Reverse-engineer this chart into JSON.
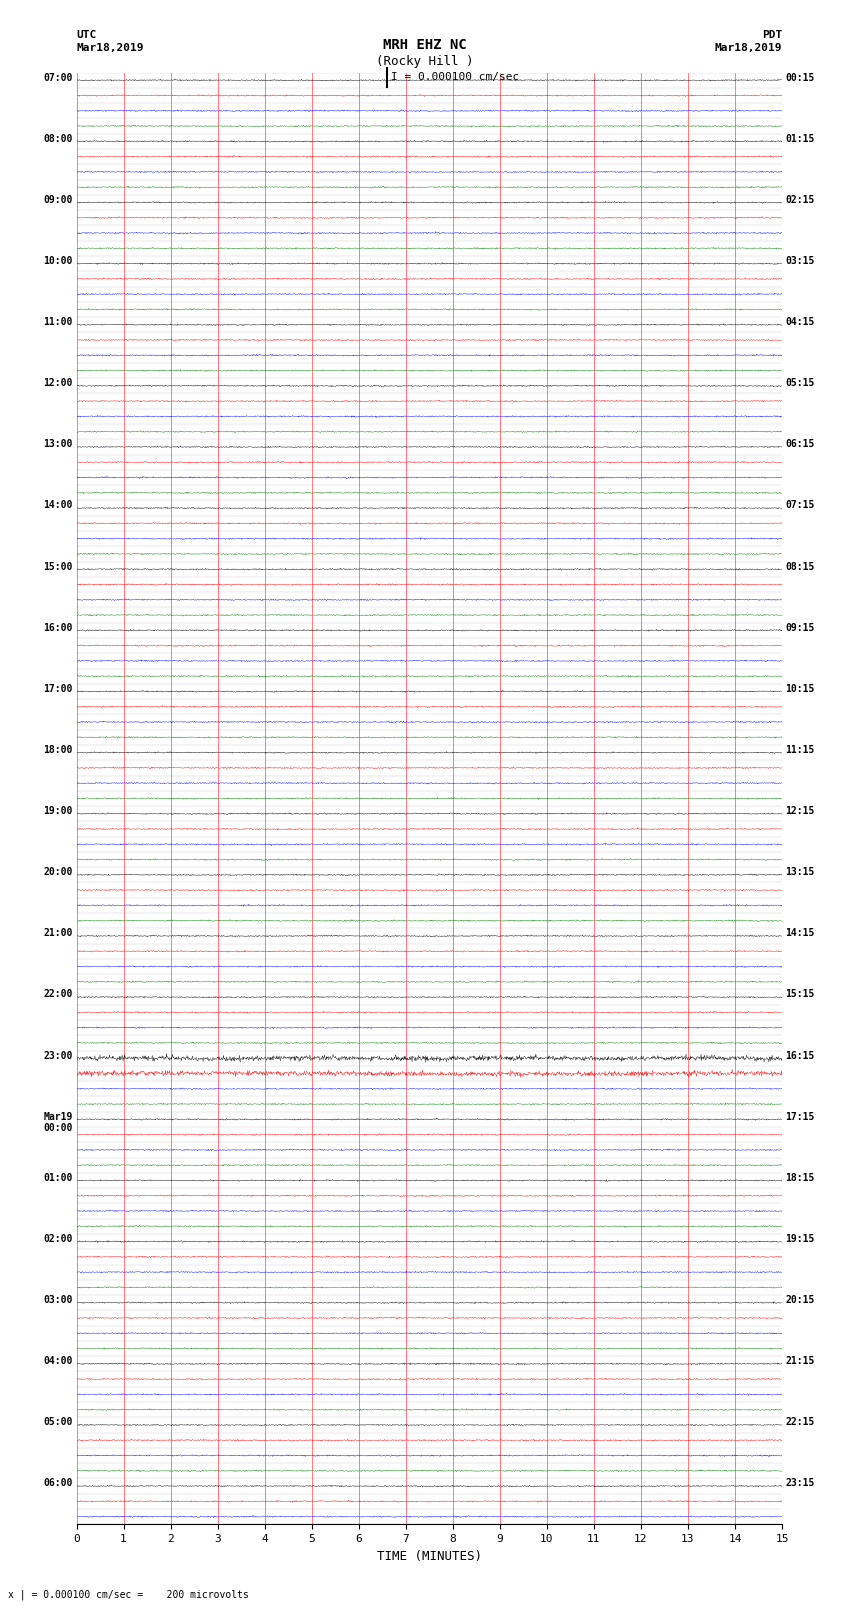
{
  "title_line1": "MRH EHZ NC",
  "title_line2": "(Rocky Hill )",
  "scale_text": "I = 0.000100 cm/sec",
  "left_header_line1": "UTC",
  "left_header_line2": "Mar18,2019",
  "right_header_line1": "PDT",
  "right_header_line2": "Mar18,2019",
  "bottom_label": "TIME (MINUTES)",
  "bottom_note": "x | = 0.000100 cm/sec =    200 microvolts",
  "x_min": 0,
  "x_max": 15,
  "x_ticks": [
    0,
    1,
    2,
    3,
    4,
    5,
    6,
    7,
    8,
    9,
    10,
    11,
    12,
    13,
    14,
    15
  ],
  "trace_colors": [
    "black",
    "red",
    "blue",
    "green"
  ],
  "n_rows": 95,
  "fig_width": 8.5,
  "fig_height": 16.13,
  "background_color": "white",
  "grid_color": "red",
  "noise_amplitude": 0.15,
  "special_rows": [
    64,
    65
  ],
  "special_amplitude": 0.6,
  "utc_label_list": [
    [
      0,
      "07:00"
    ],
    [
      4,
      "08:00"
    ],
    [
      8,
      "09:00"
    ],
    [
      12,
      "10:00"
    ],
    [
      16,
      "11:00"
    ],
    [
      20,
      "12:00"
    ],
    [
      24,
      "13:00"
    ],
    [
      28,
      "14:00"
    ],
    [
      32,
      "15:00"
    ],
    [
      36,
      "16:00"
    ],
    [
      40,
      "17:00"
    ],
    [
      44,
      "18:00"
    ],
    [
      48,
      "19:00"
    ],
    [
      52,
      "20:00"
    ],
    [
      56,
      "21:00"
    ],
    [
      60,
      "22:00"
    ],
    [
      64,
      "23:00"
    ],
    [
      68,
      "Mar19\n00:00"
    ],
    [
      72,
      "01:00"
    ],
    [
      76,
      "02:00"
    ],
    [
      80,
      "03:00"
    ],
    [
      84,
      "04:00"
    ],
    [
      88,
      "05:00"
    ],
    [
      92,
      "06:00"
    ]
  ],
  "pdt_label_list": [
    [
      0,
      "00:15"
    ],
    [
      4,
      "01:15"
    ],
    [
      8,
      "02:15"
    ],
    [
      12,
      "03:15"
    ],
    [
      16,
      "04:15"
    ],
    [
      20,
      "05:15"
    ],
    [
      24,
      "06:15"
    ],
    [
      28,
      "07:15"
    ],
    [
      32,
      "08:15"
    ],
    [
      36,
      "09:15"
    ],
    [
      40,
      "10:15"
    ],
    [
      44,
      "11:15"
    ],
    [
      48,
      "12:15"
    ],
    [
      52,
      "13:15"
    ],
    [
      56,
      "14:15"
    ],
    [
      60,
      "15:15"
    ],
    [
      64,
      "16:15"
    ],
    [
      68,
      "17:15"
    ],
    [
      72,
      "18:15"
    ],
    [
      76,
      "19:15"
    ],
    [
      80,
      "20:15"
    ],
    [
      84,
      "21:15"
    ],
    [
      88,
      "22:15"
    ],
    [
      92,
      "23:15"
    ]
  ]
}
